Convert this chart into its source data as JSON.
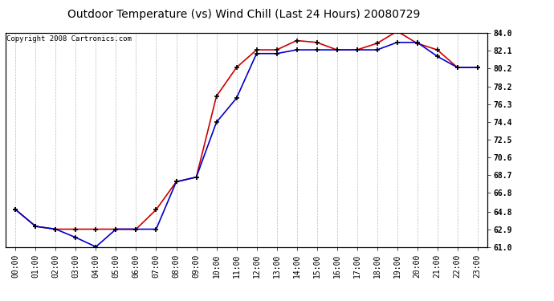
{
  "title": "Outdoor Temperature (vs) Wind Chill (Last 24 Hours) 20080729",
  "copyright": "Copyright 2008 Cartronics.com",
  "hours": [
    "00:00",
    "01:00",
    "02:00",
    "03:00",
    "04:00",
    "05:00",
    "06:00",
    "07:00",
    "08:00",
    "09:00",
    "10:00",
    "11:00",
    "12:00",
    "13:00",
    "14:00",
    "15:00",
    "16:00",
    "17:00",
    "18:00",
    "19:00",
    "20:00",
    "21:00",
    "22:00",
    "23:00"
  ],
  "outdoor_temp": [
    65.0,
    63.2,
    62.9,
    62.9,
    62.9,
    62.9,
    62.9,
    65.0,
    68.0,
    68.5,
    77.2,
    80.3,
    82.2,
    82.2,
    83.2,
    83.0,
    82.2,
    82.2,
    82.9,
    84.2,
    82.9,
    82.2,
    80.3,
    80.3
  ],
  "wind_chill": [
    65.0,
    63.2,
    62.9,
    62.0,
    61.0,
    62.9,
    62.9,
    62.9,
    68.0,
    68.5,
    74.4,
    77.0,
    81.8,
    81.8,
    82.2,
    82.2,
    82.2,
    82.2,
    82.2,
    83.0,
    83.0,
    81.5,
    80.3,
    80.3
  ],
  "temp_color": "#cc0000",
  "chill_color": "#0000cc",
  "marker": "+",
  "markersize": 5,
  "markeredgewidth": 1.2,
  "linewidth": 1.2,
  "ylim": [
    61.0,
    84.0
  ],
  "yticks": [
    61.0,
    62.9,
    64.8,
    66.8,
    68.7,
    70.6,
    72.5,
    74.4,
    76.3,
    78.2,
    80.2,
    82.1,
    84.0
  ],
  "background_color": "#ffffff",
  "grid_color": "#bbbbbb",
  "title_fontsize": 10,
  "tick_fontsize": 7,
  "copyright_fontsize": 6.5
}
